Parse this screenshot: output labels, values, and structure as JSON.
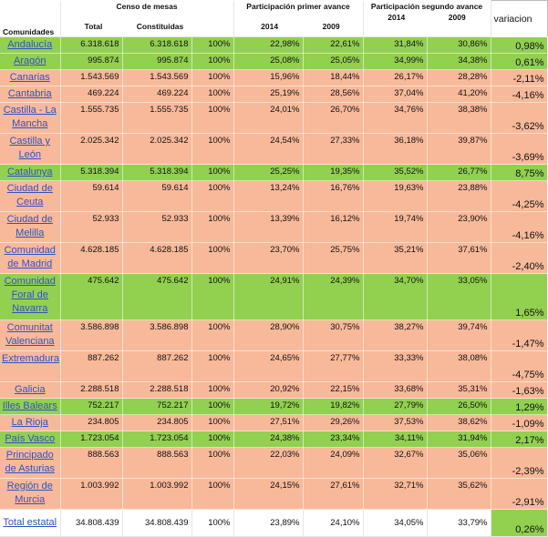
{
  "headers": {
    "comunidades": "Comunidades",
    "censo_group": "Censo de mesas",
    "total": "Total",
    "constituidas": "Constituidas",
    "primer_group": "Participación primer avance",
    "segundo_group": "Participación segundo avance",
    "y2014_a": "2014",
    "y2009_a": "2009",
    "y2014_b": "2014",
    "y2009_b": "2009",
    "variacion": "variacion"
  },
  "rows": [
    {
      "name": "Andalucía",
      "total": "6.318.618",
      "constituidas": "6.318.618",
      "pct": "100%",
      "p1_2014": "22,98%",
      "p1_2009": "22,61%",
      "p2_2014": "31,84%",
      "p2_2009": "30,86%",
      "var": "0,98%",
      "color": "green"
    },
    {
      "name": "Aragón",
      "total": "995.874",
      "constituidas": "995.874",
      "pct": "100%",
      "p1_2014": "25,08%",
      "p1_2009": "25,05%",
      "p2_2014": "34,99%",
      "p2_2009": "34,38%",
      "var": "0,61%",
      "color": "green"
    },
    {
      "name": "Canarias",
      "total": "1.543.569",
      "constituidas": "1.543.569",
      "pct": "100%",
      "p1_2014": "15,96%",
      "p1_2009": "18,44%",
      "p2_2014": "26,17%",
      "p2_2009": "28,28%",
      "var": "-2,11%",
      "color": "orange"
    },
    {
      "name": "Cantabria",
      "total": "469.224",
      "constituidas": "469.224",
      "pct": "100%",
      "p1_2014": "25,19%",
      "p1_2009": "28,56%",
      "p2_2014": "37,04%",
      "p2_2009": "41,20%",
      "var": "-4,16%",
      "color": "orange"
    },
    {
      "name": "Castilla - La Mancha",
      "total": "1.555.735",
      "constituidas": "1.555.735",
      "pct": "100%",
      "p1_2014": "24,01%",
      "p1_2009": "26,70%",
      "p2_2014": "34,76%",
      "p2_2009": "38,38%",
      "var": "-3,62%",
      "color": "orange"
    },
    {
      "name": "Castilla y León",
      "total": "2.025.342",
      "constituidas": "2.025.342",
      "pct": "100%",
      "p1_2014": "24,54%",
      "p1_2009": "27,33%",
      "p2_2014": "36,18%",
      "p2_2009": "39,87%",
      "var": "-3,69%",
      "color": "orange"
    },
    {
      "name": "Catalunya",
      "total": "5.318.394",
      "constituidas": "5.318.394",
      "pct": "100%",
      "p1_2014": "25,25%",
      "p1_2009": "19,35%",
      "p2_2014": "35,52%",
      "p2_2009": "26,77%",
      "var": "8,75%",
      "color": "green"
    },
    {
      "name": "Ciudad de Ceuta",
      "total": "59.614",
      "constituidas": "59.614",
      "pct": "100%",
      "p1_2014": "13,24%",
      "p1_2009": "16,76%",
      "p2_2014": "19,63%",
      "p2_2009": "23,88%",
      "var": "-4,25%",
      "color": "orange"
    },
    {
      "name": "Ciudad de Melilla",
      "total": "52.933",
      "constituidas": "52.933",
      "pct": "100%",
      "p1_2014": "13,39%",
      "p1_2009": "16,12%",
      "p2_2014": "19,74%",
      "p2_2009": "23,90%",
      "var": "-4,16%",
      "color": "orange"
    },
    {
      "name": "Comunidad de Madrid",
      "total": "4.628.185",
      "constituidas": "4.628.185",
      "pct": "100%",
      "p1_2014": "23,70%",
      "p1_2009": "25,75%",
      "p2_2014": "35,21%",
      "p2_2009": "37,61%",
      "var": "-2,40%",
      "color": "orange"
    },
    {
      "name": "Comunidad Foral de Navarra",
      "total": "475.642",
      "constituidas": "475.642",
      "pct": "100%",
      "p1_2014": "24,91%",
      "p1_2009": "24,39%",
      "p2_2014": "34,70%",
      "p2_2009": "33,05%",
      "var": "1,65%",
      "color": "green"
    },
    {
      "name": "Comunitat Valenciana",
      "total": "3.586.898",
      "constituidas": "3.586.898",
      "pct": "100%",
      "p1_2014": "28,90%",
      "p1_2009": "30,75%",
      "p2_2014": "38,27%",
      "p2_2009": "39,74%",
      "var": "-1,47%",
      "color": "orange"
    },
    {
      "name": "Extremadura",
      "total": "887.262",
      "constituidas": "887.262",
      "pct": "100%",
      "p1_2014": "24,65%",
      "p1_2009": "27,77%",
      "p2_2014": "33,33%",
      "p2_2009": "38,08%",
      "var": "-4,75%",
      "color": "orange"
    },
    {
      "name": "Galicia",
      "total": "2.288.518",
      "constituidas": "2.288.518",
      "pct": "100%",
      "p1_2014": "20,92%",
      "p1_2009": "22,15%",
      "p2_2014": "33,68%",
      "p2_2009": "35,31%",
      "var": "-1,63%",
      "color": "orange"
    },
    {
      "name": "Illes Balears",
      "total": "752.217",
      "constituidas": "752.217",
      "pct": "100%",
      "p1_2014": "19,72%",
      "p1_2009": "19,82%",
      "p2_2014": "27,79%",
      "p2_2009": "26,50%",
      "var": "1,29%",
      "color": "green"
    },
    {
      "name": "La Rioja",
      "total": "234.805",
      "constituidas": "234.805",
      "pct": "100%",
      "p1_2014": "27,51%",
      "p1_2009": "29,26%",
      "p2_2014": "37,53%",
      "p2_2009": "38,62%",
      "var": "-1,09%",
      "color": "orange"
    },
    {
      "name": "País Vasco",
      "total": "1.723.054",
      "constituidas": "1.723.054",
      "pct": "100%",
      "p1_2014": "24,38%",
      "p1_2009": "23,34%",
      "p2_2014": "34,11%",
      "p2_2009": "31,94%",
      "var": "2,17%",
      "color": "green"
    },
    {
      "name": "Principado de Asturias",
      "total": "888.563",
      "constituidas": "888.563",
      "pct": "100%",
      "p1_2014": "22,03%",
      "p1_2009": "24,09%",
      "p2_2014": "32,67%",
      "p2_2009": "35,06%",
      "var": "-2,39%",
      "color": "orange"
    },
    {
      "name": "Región de Murcia",
      "total": "1.003.992",
      "constituidas": "1.003.992",
      "pct": "100%",
      "p1_2014": "24,15%",
      "p1_2009": "27,61%",
      "p2_2014": "32,71%",
      "p2_2009": "35,62%",
      "var": "-2,91%",
      "color": "orange"
    },
    {
      "name": "Total estatal",
      "total": "34.808.439",
      "constituidas": "34.808.439",
      "pct": "100%",
      "p1_2014": "23,89%",
      "p1_2009": "24,10%",
      "p2_2014": "34,05%",
      "p2_2009": "33,79%",
      "var": "0,26%",
      "color": "white"
    }
  ]
}
